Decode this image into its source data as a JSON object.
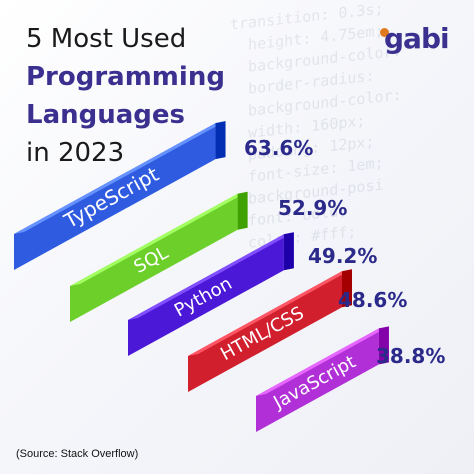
{
  "title": {
    "line1": "5 Most Used",
    "line2": "Programming",
    "line3": "Languages",
    "line4": "in 2023"
  },
  "logo": "gabi",
  "source": "(Source: Stack Overflow)",
  "chart_data": {
    "type": "bar",
    "categories": [
      "TypeScript",
      "SQL",
      "Python",
      "HTML/CSS",
      "JavaScript"
    ],
    "values": [
      63.6,
      52.9,
      49.2,
      48.6,
      38.8
    ],
    "value_labels": [
      "63.6%",
      "52.9%",
      "49.2%",
      "48.6%",
      "38.8%"
    ],
    "colors": [
      "#2f5be0",
      "#6ccf2a",
      "#4a18d6",
      "#d11f2e",
      "#b02fd6"
    ],
    "title": "5 Most Used Programming Languages in 2023",
    "xlabel": "",
    "ylabel": ""
  }
}
